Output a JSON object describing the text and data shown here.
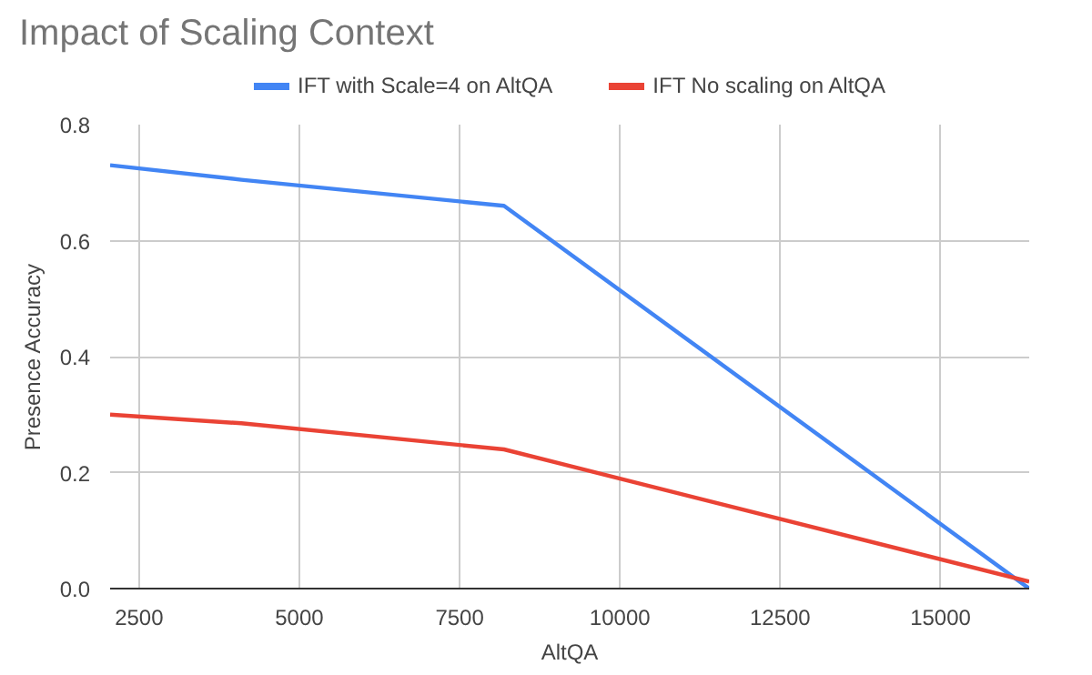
{
  "chart_data": {
    "type": "line",
    "title": "Impact of Scaling Context",
    "xlabel": "AltQA",
    "ylabel": "Presence Accuracy",
    "x": [
      2048,
      4096,
      8192,
      16384
    ],
    "series": [
      {
        "name": "IFT with Scale=4 on AltQA",
        "color": "#4285f4",
        "values": [
          0.73,
          0.705,
          0.66,
          0.0
        ]
      },
      {
        "name": "IFT No scaling on AltQA",
        "color": "#ea4335",
        "values": [
          0.3,
          0.285,
          0.24,
          0.012
        ]
      }
    ],
    "xlim": [
      2048,
      16384
    ],
    "xticks": [
      2500,
      5000,
      7500,
      10000,
      12500,
      15000
    ],
    "ylim": [
      0,
      0.8
    ],
    "yticks": [
      {
        "value": 0,
        "label": "0.0"
      },
      {
        "value": 0.2,
        "label": "0.2"
      },
      {
        "value": 0.4,
        "label": "0.4"
      },
      {
        "value": 0.6,
        "label": "0.6"
      },
      {
        "value": 0.8,
        "label": "0.8"
      }
    ],
    "grid": true,
    "legend": "top",
    "marker": "none",
    "line_style": "solid"
  }
}
